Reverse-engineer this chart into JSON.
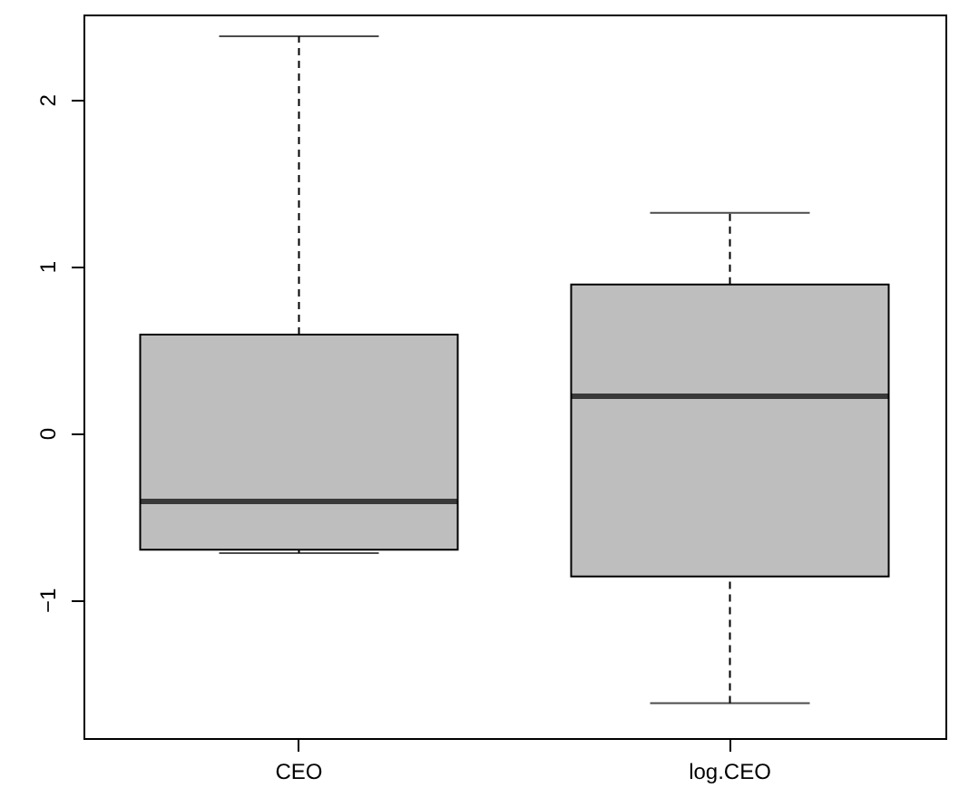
{
  "chart_data": {
    "type": "box",
    "categories": [
      "CEO",
      "log.CEO"
    ],
    "series": [
      {
        "color": "#bebebe",
        "boxes": [
          {
            "low": -0.72,
            "q1": -0.7,
            "median": -0.41,
            "q3": 0.59,
            "high": 2.38
          },
          {
            "low": -1.62,
            "q1": -0.86,
            "median": 0.22,
            "q3": 0.89,
            "high": 1.32
          }
        ]
      }
    ],
    "ylim": [
      -1.83,
      2.51
    ],
    "yticks": [
      -1,
      0,
      1,
      2
    ]
  }
}
